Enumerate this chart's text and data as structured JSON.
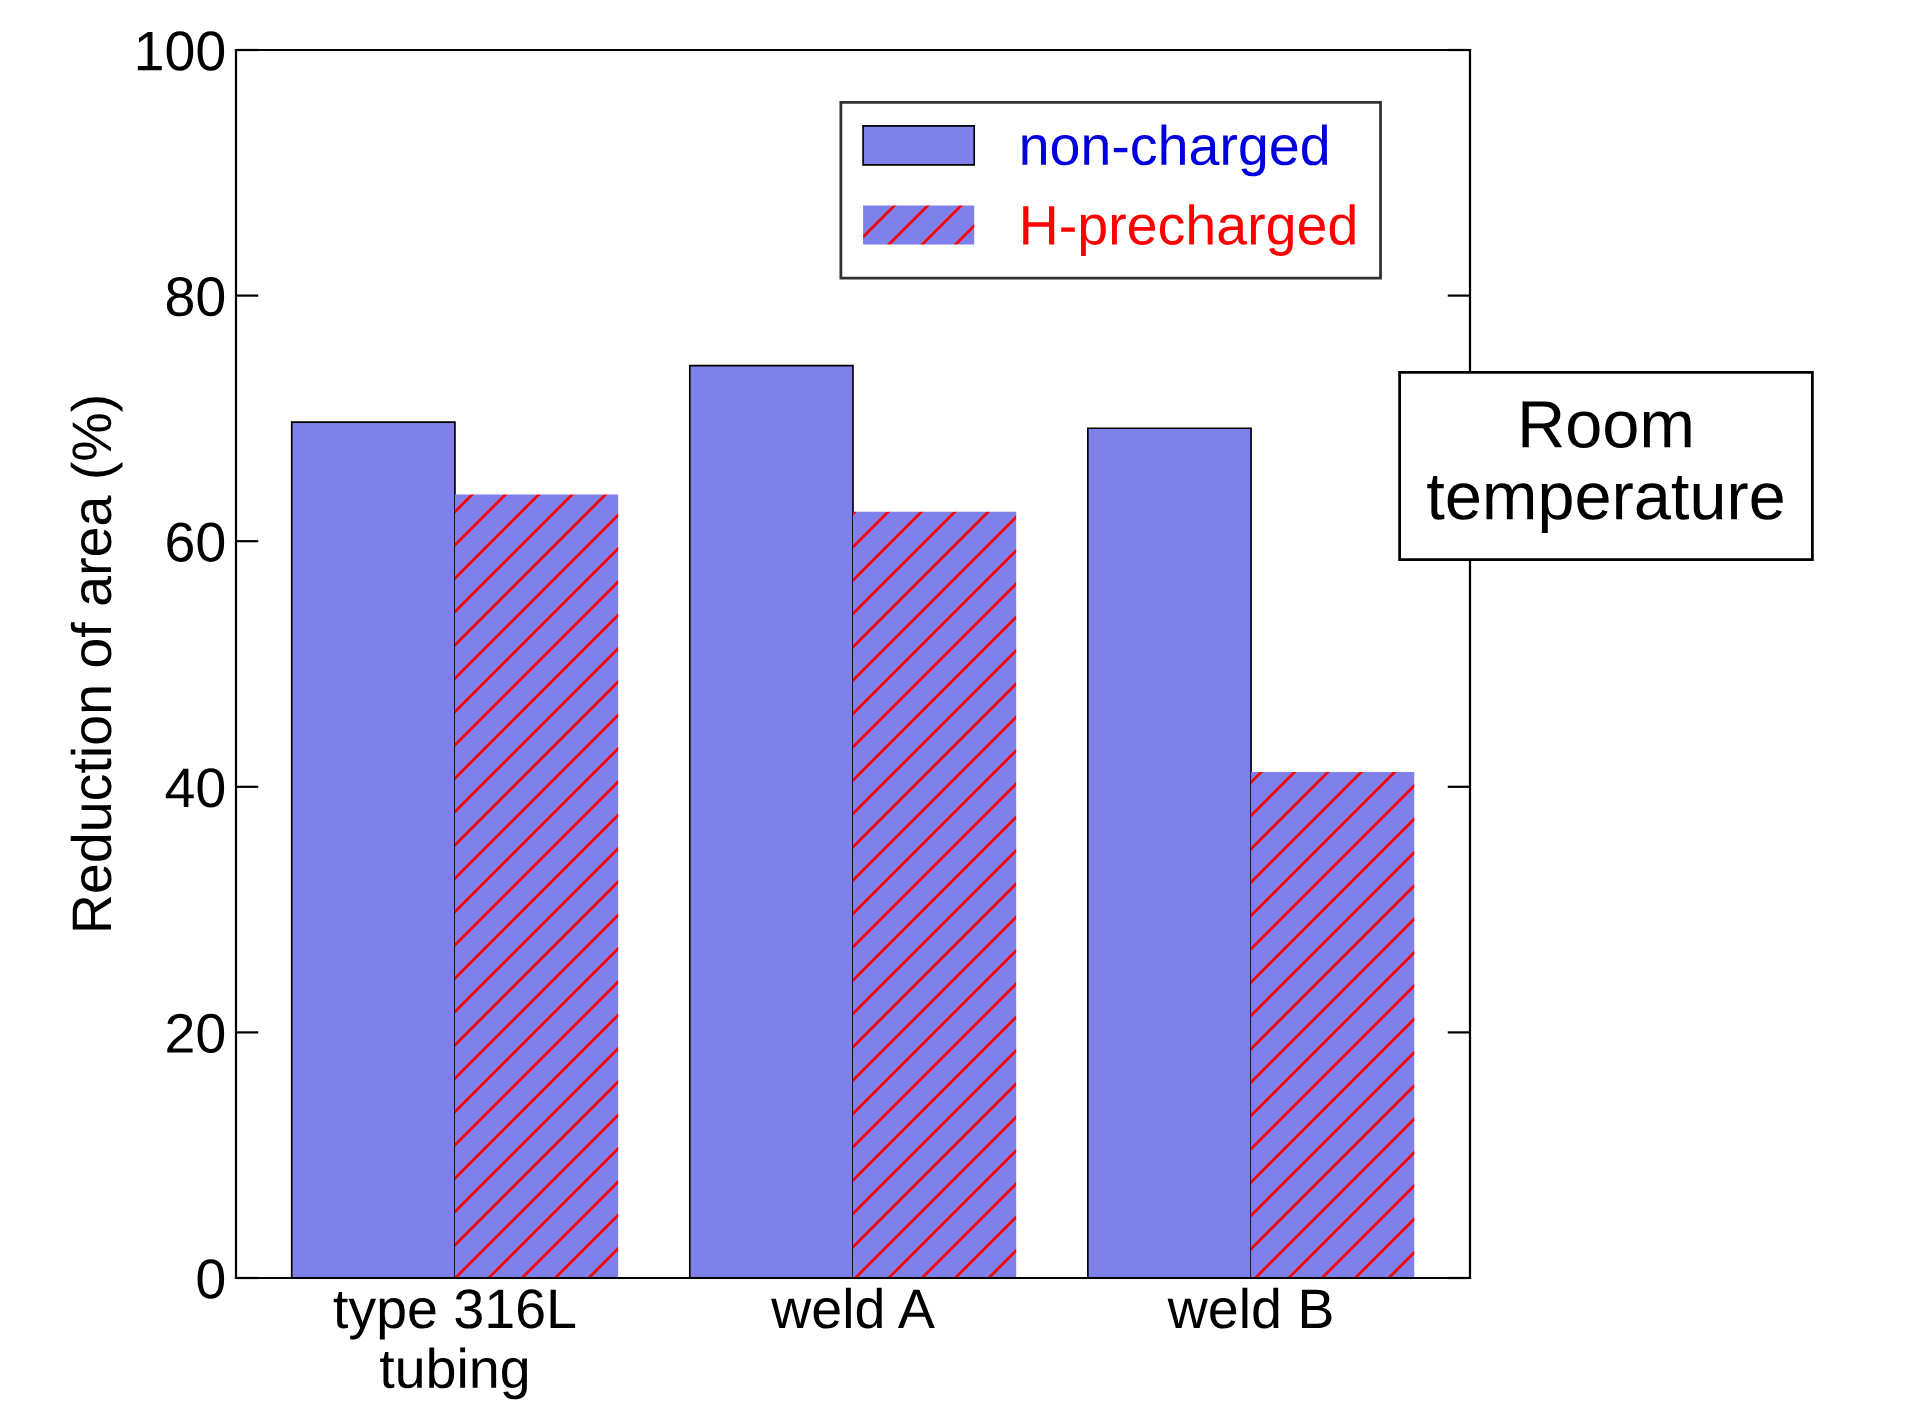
{
  "chart_data": {
    "type": "bar",
    "ylabel": "Reduction of area (%)",
    "categories": [
      "type 316L\ntubing",
      "weld A",
      "weld B"
    ],
    "series": [
      {
        "name": "non-charged",
        "color": "#7f80ea",
        "values": [
          69.7,
          74.3,
          69.2
        ]
      },
      {
        "name": "H-precharged",
        "color": "#7f80ea",
        "values": [
          63.8,
          62.4,
          41.2
        ]
      }
    ],
    "ylim": [
      0,
      100
    ],
    "yticks": [
      0,
      20,
      40,
      60,
      80,
      100
    ],
    "grid": false,
    "legend": "top right",
    "annotations": [
      "Room\ntemperature"
    ]
  }
}
